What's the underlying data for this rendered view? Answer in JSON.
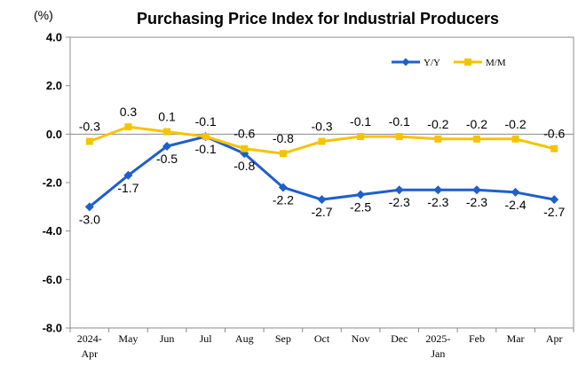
{
  "chart_data": {
    "type": "line",
    "title": "Purchasing Price Index for Industrial Producers",
    "unit_label": "(%)",
    "categories": [
      [
        "2024-",
        "Apr"
      ],
      [
        "May"
      ],
      [
        "Jun"
      ],
      [
        "Jul"
      ],
      [
        "Aug"
      ],
      [
        "Sep"
      ],
      [
        "Oct"
      ],
      [
        "Nov"
      ],
      [
        "Dec"
      ],
      [
        "2025-",
        "Jan"
      ],
      [
        "Feb"
      ],
      [
        "Mar"
      ],
      [
        "Apr"
      ]
    ],
    "series": [
      {
        "name": "Y/Y",
        "color": "#1F5FCC",
        "marker": "diamond",
        "values": [
          -3.0,
          -1.7,
          -0.5,
          -0.1,
          -0.8,
          -2.2,
          -2.7,
          -2.5,
          -2.3,
          -2.3,
          -2.3,
          -2.4,
          -2.7
        ],
        "labels": [
          "-3.0",
          "-1.7",
          "-0.5",
          "-0.1",
          "-0.8",
          "-2.2",
          "-2.7",
          "-2.5",
          "-2.3",
          "-2.3",
          "-2.3",
          "-2.4",
          "-2.7"
        ],
        "label_position": "below"
      },
      {
        "name": "M/M",
        "color": "#F5C400",
        "marker": "square",
        "values": [
          -0.3,
          0.3,
          0.1,
          -0.1,
          -0.6,
          -0.8,
          -0.3,
          -0.1,
          -0.1,
          -0.2,
          -0.2,
          -0.2,
          -0.6
        ],
        "labels": [
          "-0.3",
          "0.3",
          "0.1",
          "-0.1",
          "-0.6",
          "-0.8",
          "-0.3",
          "-0.1",
          "-0.1",
          "-0.2",
          "-0.2",
          "-0.2",
          "-0.6"
        ],
        "label_position": "above"
      }
    ],
    "ylim": [
      -8.0,
      4.0
    ],
    "yticks": [
      4.0,
      2.0,
      0.0,
      -2.0,
      -4.0,
      -6.0,
      -8.0
    ],
    "ytick_labels": [
      "4.0",
      "2.0",
      "0.0",
      "-2.0",
      "-4.0",
      "-6.0",
      "-8.0"
    ],
    "grid": false,
    "legend_position": "top-right"
  }
}
